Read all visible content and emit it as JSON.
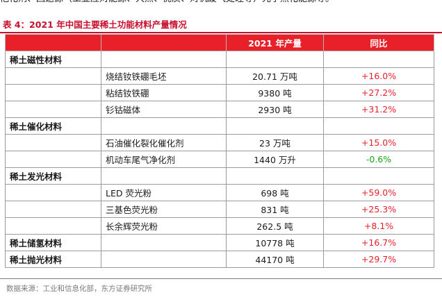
{
  "top_text": "他化剂、回返源（工业应对能源、大然、优质、对机废气处理等）光学热化能源等。",
  "caption": "表 4：2021 年中国主要稀土功能材料产量情况",
  "table": {
    "headers": [
      "",
      "",
      "2021 年产量",
      "同比"
    ],
    "rows": [
      {
        "category": "稀土磁性材料",
        "product": "",
        "output": "",
        "yoy": "",
        "dir": ""
      },
      {
        "category": "",
        "product": "烧结钕铁硼毛坯",
        "output": "20.71 万吨",
        "yoy": "+16.0%",
        "dir": "pos"
      },
      {
        "category": "",
        "product": "粘结钕铁硼",
        "output": "9380 吨",
        "yoy": "+27.2%",
        "dir": "pos"
      },
      {
        "category": "",
        "product": "钐钴磁体",
        "output": "2930 吨",
        "yoy": "+31.2%",
        "dir": "pos"
      },
      {
        "category": "稀土催化材料",
        "product": "",
        "output": "",
        "yoy": "",
        "dir": ""
      },
      {
        "category": "",
        "product": "石油催化裂化催化剂",
        "output": "23 万吨",
        "yoy": "+15.0%",
        "dir": "pos"
      },
      {
        "category": "",
        "product": "机动车尾气净化剂",
        "output": "1440 万升",
        "yoy": "-0.6%",
        "dir": "neg"
      },
      {
        "category": "稀土发光材料",
        "product": "",
        "output": "",
        "yoy": "",
        "dir": ""
      },
      {
        "category": "",
        "product": "LED 荧光粉",
        "output": "698 吨",
        "yoy": "+59.0%",
        "dir": "pos"
      },
      {
        "category": "",
        "product": "三基色荧光粉",
        "output": "831 吨",
        "yoy": "+25.3%",
        "dir": "pos"
      },
      {
        "category": "",
        "product": "长余辉荧光粉",
        "output": "262.5 吨",
        "yoy": "+8.1%",
        "dir": "pos"
      },
      {
        "category": "稀土储氢材料",
        "product": "",
        "output": "10778 吨",
        "yoy": "+16.7%",
        "dir": "pos"
      },
      {
        "category": "稀土抛光材料",
        "product": "",
        "output": "44170 吨",
        "yoy": "+29.7%",
        "dir": "pos"
      }
    ]
  },
  "source": "数据来源：工业和信息化部，东方证券研究所",
  "colors": {
    "accent": "#e8202a",
    "caption": "#c8102e",
    "positive": "#e8202a",
    "negative": "#18a818"
  }
}
